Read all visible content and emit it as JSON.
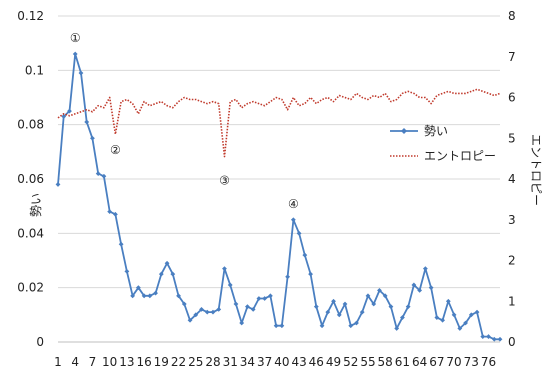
{
  "chart_data": {
    "type": "line",
    "title": "",
    "xlabel": "",
    "ylabel": "勢い",
    "y2label": "エントロピー",
    "ylim": [
      0,
      0.12
    ],
    "y2lim": [
      0,
      8
    ],
    "yticks": [
      "0",
      "0.02",
      "0.04",
      "0.06",
      "0.08",
      "0.1",
      "0.12"
    ],
    "y2ticks": [
      "0",
      "1",
      "2",
      "3",
      "4",
      "5",
      "6",
      "7",
      "8"
    ],
    "xticks": [
      "1",
      "4",
      "7",
      "10",
      "13",
      "16",
      "19",
      "22",
      "25",
      "28",
      "31",
      "34",
      "37",
      "40",
      "43",
      "46",
      "49",
      "52",
      "55",
      "58",
      "61",
      "64",
      "67",
      "70",
      "73",
      "76"
    ],
    "x": [
      1,
      2,
      3,
      4,
      5,
      6,
      7,
      8,
      9,
      10,
      11,
      12,
      13,
      14,
      15,
      16,
      17,
      18,
      19,
      20,
      21,
      22,
      23,
      24,
      25,
      26,
      27,
      28,
      29,
      30,
      31,
      32,
      33,
      34,
      35,
      36,
      37,
      38,
      39,
      40,
      41,
      42,
      43,
      44,
      45,
      46,
      47,
      48,
      49,
      50,
      51,
      52,
      53,
      54,
      55,
      56,
      57,
      58,
      59,
      60,
      61,
      62,
      63,
      64,
      65,
      66,
      67,
      68,
      69,
      70,
      71,
      72,
      73,
      74,
      75,
      76,
      77,
      78
    ],
    "legend_position": "right",
    "series": [
      {
        "name": "勢い",
        "axis": "left",
        "color": "#4a7fc1",
        "style": "line-diamond",
        "values": [
          0.058,
          0.083,
          0.085,
          0.106,
          0.099,
          0.081,
          0.075,
          0.062,
          0.061,
          0.048,
          0.047,
          0.036,
          0.026,
          0.017,
          0.02,
          0.017,
          0.017,
          0.018,
          0.025,
          0.029,
          0.025,
          0.017,
          0.014,
          0.008,
          0.01,
          0.012,
          0.011,
          0.011,
          0.012,
          0.027,
          0.021,
          0.014,
          0.007,
          0.013,
          0.012,
          0.016,
          0.016,
          0.017,
          0.006,
          0.006,
          0.024,
          0.045,
          0.04,
          0.032,
          0.025,
          0.013,
          0.006,
          0.011,
          0.015,
          0.01,
          0.014,
          0.006,
          0.007,
          0.011,
          0.017,
          0.014,
          0.019,
          0.017,
          0.013,
          0.005,
          0.009,
          0.013,
          0.021,
          0.019,
          0.027,
          0.02,
          0.009,
          0.008,
          0.015,
          0.01,
          0.005,
          0.007,
          0.01,
          0.011,
          0.002,
          0.002,
          0.001,
          0.001
        ]
      },
      {
        "name": "エントロピー",
        "axis": "right",
        "color": "#c0392b",
        "style": "dotted",
        "values": [
          5.5,
          5.6,
          5.55,
          5.6,
          5.65,
          5.7,
          5.65,
          5.8,
          5.75,
          6.0,
          5.1,
          5.9,
          5.95,
          5.85,
          5.6,
          5.9,
          5.8,
          5.85,
          5.9,
          5.8,
          5.75,
          5.9,
          6.0,
          5.95,
          5.95,
          5.9,
          5.85,
          5.9,
          5.85,
          4.55,
          5.9,
          5.95,
          5.75,
          5.85,
          5.9,
          5.85,
          5.8,
          5.9,
          6.0,
          5.95,
          5.7,
          6.0,
          5.8,
          5.85,
          6.0,
          5.85,
          5.95,
          6.0,
          5.9,
          6.05,
          6.0,
          5.95,
          6.1,
          6.0,
          5.95,
          6.05,
          6.0,
          6.1,
          5.9,
          5.95,
          6.1,
          6.15,
          6.1,
          6.0,
          6.0,
          5.85,
          6.05,
          6.1,
          6.15,
          6.1,
          6.1,
          6.1,
          6.15,
          6.2,
          6.15,
          6.1,
          6.05,
          6.1
        ]
      }
    ],
    "annotations": [
      {
        "label": "①",
        "x": 4,
        "axis": "left",
        "y": 0.106
      },
      {
        "label": "②",
        "x": 11,
        "axis": "right",
        "y": 5.1
      },
      {
        "label": "③",
        "x": 30,
        "axis": "right",
        "y": 4.55
      },
      {
        "label": "④",
        "x": 42,
        "axis": "left",
        "y": 0.045
      }
    ]
  }
}
